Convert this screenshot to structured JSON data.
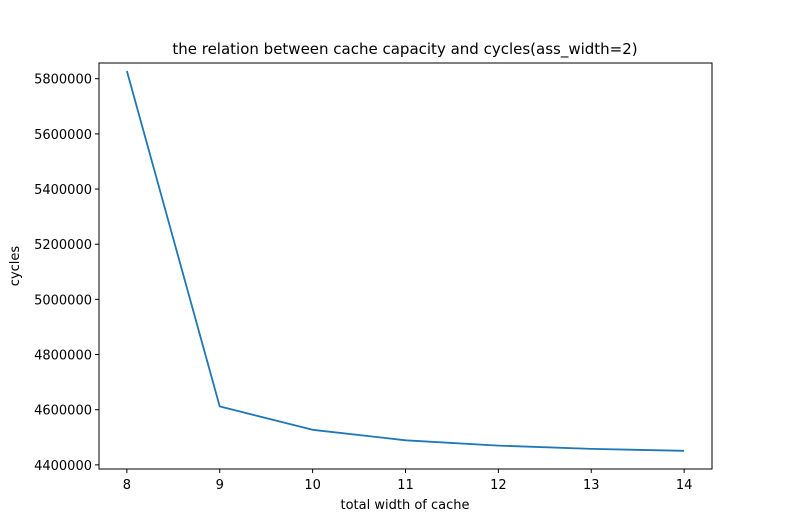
{
  "colors": {
    "line": "#1f77b4",
    "axes": "#000000",
    "background": "#ffffff"
  },
  "chart_data": {
    "type": "line",
    "title": "the relation between cache capacity and cycles(ass_width=2)",
    "xlabel": "total width of cache",
    "ylabel": "cycles",
    "x": [
      8,
      9,
      10,
      11,
      12,
      13,
      14
    ],
    "series": [
      {
        "values": [
          5828000,
          4612000,
          4527000,
          4489000,
          4470000,
          4458000,
          4451000
        ]
      }
    ],
    "xlim": [
      7.7,
      14.3
    ],
    "ylim": [
      4385000,
      5857000
    ],
    "xticks": [
      8,
      9,
      10,
      11,
      12,
      13,
      14
    ],
    "xtick_labels": [
      "8",
      "9",
      "10",
      "11",
      "12",
      "13",
      "14"
    ],
    "yticks": [
      4400000,
      4600000,
      4800000,
      5000000,
      5200000,
      5400000,
      5600000,
      5800000
    ],
    "ytick_labels": [
      "4400000",
      "4600000",
      "4800000",
      "5000000",
      "5200000",
      "5400000",
      "5600000",
      "5800000"
    ],
    "grid": false,
    "legend": "none"
  }
}
